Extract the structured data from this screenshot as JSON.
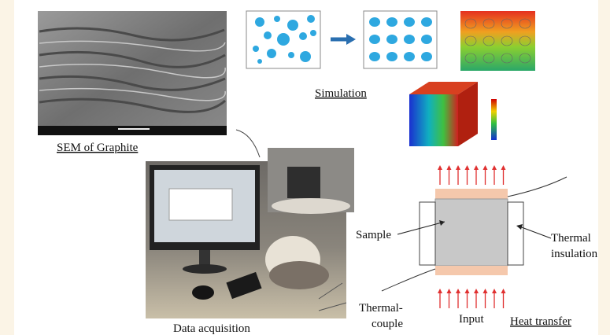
{
  "labels": {
    "sem": "SEM of Graphite",
    "simulation": "Simulation",
    "data_acquisition": "Data acquisition",
    "sample": "Sample",
    "thermal_insulation": [
      "Thermal",
      "insulation"
    ],
    "thermocouple": [
      "Thermal-",
      "couple"
    ],
    "input": "Input",
    "heat_transfer": "Heat transfer"
  }
}
